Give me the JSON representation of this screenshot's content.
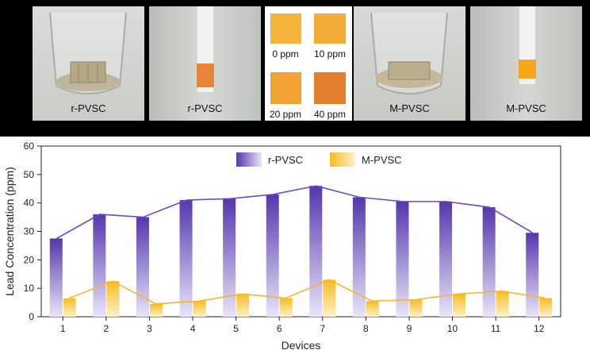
{
  "photos": [
    {
      "label": "r-PVSC",
      "kind": "beaker"
    },
    {
      "label": "r-PVSC",
      "kind": "strip",
      "strip_color": "#e8843a"
    },
    {
      "label": "M-PVSC",
      "kind": "beaker"
    },
    {
      "label": "M-PVSC",
      "kind": "strip",
      "strip_color": "#f5a41c"
    }
  ],
  "reference_swatches": [
    {
      "label": "0 ppm",
      "color": "#f4b43c"
    },
    {
      "label": "10 ppm",
      "color": "#f2ac38"
    },
    {
      "label": "20 ppm",
      "color": "#f0a232"
    },
    {
      "label": "40 ppm",
      "color": "#e57f30"
    }
  ],
  "chart_data": {
    "type": "bar",
    "categories": [
      "1",
      "2",
      "3",
      "4",
      "5",
      "6",
      "7",
      "8",
      "9",
      "10",
      "11",
      "12"
    ],
    "series": [
      {
        "name": "r-PVSC",
        "values": [
          27.5,
          36,
          35,
          41,
          41.5,
          43,
          46,
          42,
          40.5,
          40.5,
          38.5,
          29.5
        ],
        "color": "#5b3fb3",
        "line_color": "#6a4cc0"
      },
      {
        "name": "M-PVSC",
        "values": [
          6.5,
          12.5,
          4.5,
          5.5,
          8,
          6.5,
          13,
          5.5,
          6,
          8,
          9,
          6.5
        ],
        "color": "#f6c02a",
        "line_color": "#f2b72c"
      }
    ],
    "xlabel": "Devices",
    "ylabel": "Lead Concentration (ppm)",
    "ylim": [
      0,
      60
    ],
    "yticks": [
      "0",
      "10",
      "20",
      "30",
      "40",
      "50",
      "60"
    ],
    "legend_position": "top-center"
  }
}
